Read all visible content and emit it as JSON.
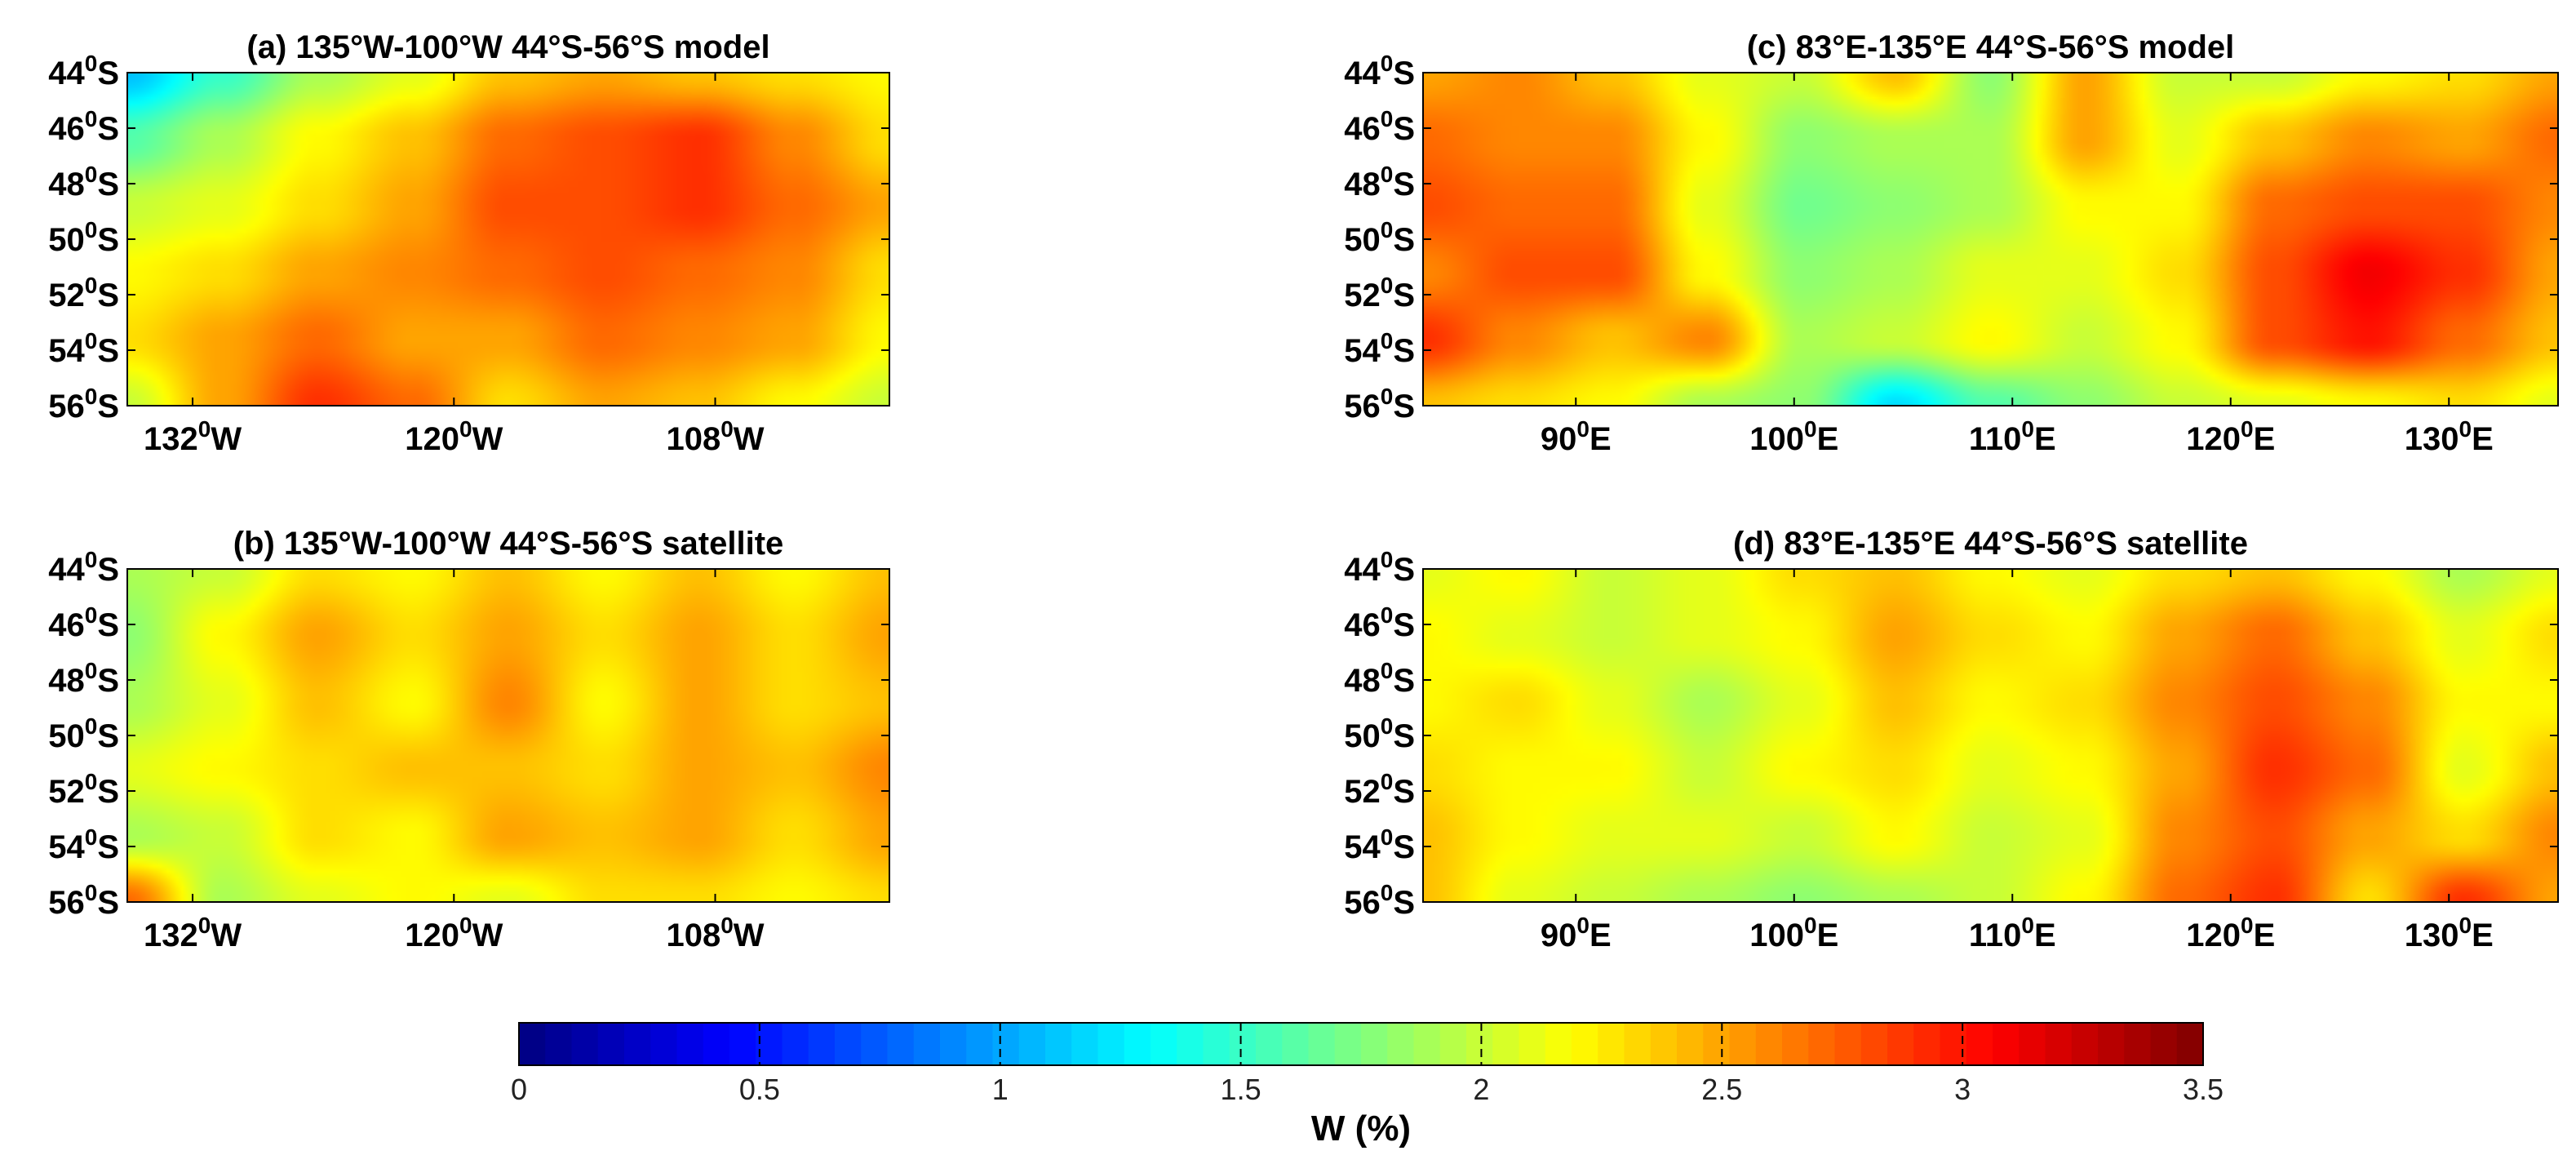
{
  "chart_data": [
    {
      "id": "a",
      "type": "heatmap",
      "title": "(a) 135°W-100°W 44°S-56°S model",
      "x_range": [
        -135,
        -100
      ],
      "y_range": [
        -56,
        -44
      ],
      "x_ticks": [
        {
          "value": -132,
          "num": "132",
          "deg": "0",
          "hem": "W"
        },
        {
          "value": -120,
          "num": "120",
          "deg": "0",
          "hem": "W"
        },
        {
          "value": -108,
          "num": "108",
          "deg": "0",
          "hem": "W"
        }
      ],
      "y_ticks": [
        {
          "value": -44,
          "num": "44",
          "deg": "0",
          "hem": "S"
        },
        {
          "value": -46,
          "num": "46",
          "deg": "0",
          "hem": "S"
        },
        {
          "value": -48,
          "num": "48",
          "deg": "0",
          "hem": "S"
        },
        {
          "value": -50,
          "num": "50",
          "deg": "0",
          "hem": "S"
        },
        {
          "value": -52,
          "num": "52",
          "deg": "0",
          "hem": "S"
        },
        {
          "value": -54,
          "num": "54",
          "deg": "0",
          "hem": "S"
        },
        {
          "value": -56,
          "num": "56",
          "deg": "0",
          "hem": "S"
        }
      ],
      "grid_rows": 6,
      "grid_cols": 9,
      "values": [
        [
          1.1,
          1.5,
          1.9,
          2.1,
          2.4,
          2.5,
          2.4,
          2.3,
          2.2
        ],
        [
          1.6,
          1.9,
          2.2,
          2.4,
          2.7,
          2.8,
          2.9,
          2.6,
          2.3
        ],
        [
          2.0,
          2.1,
          2.3,
          2.5,
          2.8,
          2.8,
          2.9,
          2.7,
          2.5
        ],
        [
          2.2,
          2.3,
          2.5,
          2.6,
          2.7,
          2.8,
          2.7,
          2.6,
          2.3
        ],
        [
          2.3,
          2.5,
          2.7,
          2.5,
          2.5,
          2.7,
          2.6,
          2.5,
          2.2
        ],
        [
          2.0,
          2.5,
          2.9,
          2.7,
          2.3,
          2.5,
          2.4,
          2.2,
          2.0
        ]
      ]
    },
    {
      "id": "b",
      "type": "heatmap",
      "title": "(b) 135°W-100°W 44°S-56°S satellite",
      "x_range": [
        -135,
        -100
      ],
      "y_range": [
        -56,
        -44
      ],
      "x_ticks": [
        {
          "value": -132,
          "num": "132",
          "deg": "0",
          "hem": "W"
        },
        {
          "value": -120,
          "num": "120",
          "deg": "0",
          "hem": "W"
        },
        {
          "value": -108,
          "num": "108",
          "deg": "0",
          "hem": "W"
        }
      ],
      "y_ticks": [
        {
          "value": -44,
          "num": "44",
          "deg": "0",
          "hem": "S"
        },
        {
          "value": -46,
          "num": "46",
          "deg": "0",
          "hem": "S"
        },
        {
          "value": -48,
          "num": "48",
          "deg": "0",
          "hem": "S"
        },
        {
          "value": -50,
          "num": "50",
          "deg": "0",
          "hem": "S"
        },
        {
          "value": -52,
          "num": "52",
          "deg": "0",
          "hem": "S"
        },
        {
          "value": -54,
          "num": "54",
          "deg": "0",
          "hem": "S"
        },
        {
          "value": -56,
          "num": "56",
          "deg": "0",
          "hem": "S"
        }
      ],
      "grid_rows": 6,
      "grid_cols": 9,
      "values": [
        [
          1.9,
          2.0,
          2.3,
          2.2,
          2.4,
          2.2,
          2.4,
          2.2,
          2.4
        ],
        [
          1.8,
          2.2,
          2.5,
          2.3,
          2.5,
          2.3,
          2.5,
          2.3,
          2.5
        ],
        [
          1.9,
          2.1,
          2.4,
          2.2,
          2.6,
          2.2,
          2.5,
          2.3,
          2.4
        ],
        [
          2.1,
          2.2,
          2.3,
          2.4,
          2.4,
          2.3,
          2.5,
          2.4,
          2.6
        ],
        [
          1.9,
          2.0,
          2.3,
          2.2,
          2.5,
          2.4,
          2.5,
          2.3,
          2.5
        ],
        [
          2.7,
          1.9,
          2.1,
          2.2,
          2.1,
          2.3,
          2.3,
          2.2,
          2.3
        ]
      ]
    },
    {
      "id": "c",
      "type": "heatmap",
      "title": "(c) 83°E-135°E 44°S-56°S model",
      "x_range": [
        83,
        135
      ],
      "y_range": [
        -56,
        -44
      ],
      "x_ticks": [
        {
          "value": 90,
          "num": "90",
          "deg": "0",
          "hem": "E"
        },
        {
          "value": 100,
          "num": "100",
          "deg": "0",
          "hem": "E"
        },
        {
          "value": 110,
          "num": "110",
          "deg": "0",
          "hem": "E"
        },
        {
          "value": 120,
          "num": "120",
          "deg": "0",
          "hem": "E"
        },
        {
          "value": 130,
          "num": "130",
          "deg": "0",
          "hem": "E"
        }
      ],
      "y_ticks": [
        {
          "value": -44,
          "num": "44",
          "deg": "0",
          "hem": "S"
        },
        {
          "value": -46,
          "num": "46",
          "deg": "0",
          "hem": "S"
        },
        {
          "value": -48,
          "num": "48",
          "deg": "0",
          "hem": "S"
        },
        {
          "value": -50,
          "num": "50",
          "deg": "0",
          "hem": "S"
        },
        {
          "value": -52,
          "num": "52",
          "deg": "0",
          "hem": "S"
        },
        {
          "value": -54,
          "num": "54",
          "deg": "0",
          "hem": "S"
        },
        {
          "value": -56,
          "num": "56",
          "deg": "0",
          "hem": "S"
        }
      ],
      "grid_rows": 6,
      "grid_cols": 13,
      "values": [
        [
          2.5,
          2.6,
          2.4,
          2.1,
          2.0,
          2.4,
          1.8,
          2.5,
          2.0,
          2.0,
          2.2,
          2.3,
          2.5
        ],
        [
          2.7,
          2.6,
          2.6,
          2.2,
          1.8,
          1.9,
          1.9,
          2.5,
          2.1,
          2.4,
          2.6,
          2.5,
          2.7
        ],
        [
          2.8,
          2.7,
          2.7,
          2.1,
          1.7,
          1.8,
          1.9,
          2.2,
          2.2,
          2.7,
          2.8,
          2.8,
          2.6
        ],
        [
          2.6,
          2.8,
          2.8,
          2.2,
          1.8,
          1.9,
          2.1,
          2.1,
          2.3,
          2.8,
          3.1,
          2.9,
          2.5
        ],
        [
          2.9,
          2.6,
          2.4,
          2.6,
          1.9,
          2.0,
          2.2,
          2.0,
          2.2,
          2.8,
          3.0,
          2.7,
          2.4
        ],
        [
          2.4,
          2.3,
          2.2,
          1.9,
          1.8,
          1.2,
          1.6,
          1.8,
          2.0,
          2.1,
          2.2,
          2.3,
          2.1
        ]
      ]
    },
    {
      "id": "d",
      "type": "heatmap",
      "title": "(d) 83°E-135°E 44°S-56°S satellite",
      "x_range": [
        83,
        135
      ],
      "y_range": [
        -56,
        -44
      ],
      "x_ticks": [
        {
          "value": 90,
          "num": "90",
          "deg": "0",
          "hem": "E"
        },
        {
          "value": 100,
          "num": "100",
          "deg": "0",
          "hem": "E"
        },
        {
          "value": 110,
          "num": "110",
          "deg": "0",
          "hem": "E"
        },
        {
          "value": 120,
          "num": "120",
          "deg": "0",
          "hem": "E"
        },
        {
          "value": 130,
          "num": "130",
          "deg": "0",
          "hem": "E"
        }
      ],
      "y_ticks": [
        {
          "value": -44,
          "num": "44",
          "deg": "0",
          "hem": "S"
        },
        {
          "value": -46,
          "num": "46",
          "deg": "0",
          "hem": "S"
        },
        {
          "value": -48,
          "num": "48",
          "deg": "0",
          "hem": "S"
        },
        {
          "value": -50,
          "num": "50",
          "deg": "0",
          "hem": "S"
        },
        {
          "value": -52,
          "num": "52",
          "deg": "0",
          "hem": "S"
        },
        {
          "value": -54,
          "num": "54",
          "deg": "0",
          "hem": "S"
        },
        {
          "value": -56,
          "num": "56",
          "deg": "0",
          "hem": "S"
        }
      ],
      "grid_rows": 6,
      "grid_cols": 13,
      "values": [
        [
          2.1,
          2.2,
          2.0,
          2.1,
          2.3,
          2.4,
          2.2,
          2.1,
          2.3,
          2.4,
          2.2,
          1.9,
          2.1
        ],
        [
          2.2,
          2.1,
          2.0,
          2.1,
          2.2,
          2.5,
          2.3,
          2.2,
          2.5,
          2.7,
          2.4,
          2.1,
          2.3
        ],
        [
          2.2,
          2.3,
          2.1,
          1.9,
          2.1,
          2.4,
          2.2,
          2.3,
          2.6,
          2.8,
          2.6,
          2.2,
          2.2
        ],
        [
          2.3,
          2.2,
          2.2,
          2.0,
          2.2,
          2.3,
          2.1,
          2.2,
          2.5,
          2.9,
          2.7,
          2.1,
          2.4
        ],
        [
          2.4,
          2.2,
          2.1,
          2.1,
          2.0,
          2.2,
          2.0,
          2.1,
          2.6,
          2.8,
          2.5,
          2.3,
          2.6
        ],
        [
          2.4,
          2.1,
          2.0,
          1.9,
          1.8,
          1.9,
          2.0,
          2.2,
          2.7,
          2.9,
          2.3,
          2.9,
          2.5
        ]
      ]
    }
  ],
  "colorbar": {
    "label": "W (%)",
    "min": 0,
    "max": 3.5,
    "ticks": [
      "0",
      "0.5",
      "1",
      "1.5",
      "2",
      "2.5",
      "3",
      "3.5"
    ],
    "colormap": "jet"
  }
}
